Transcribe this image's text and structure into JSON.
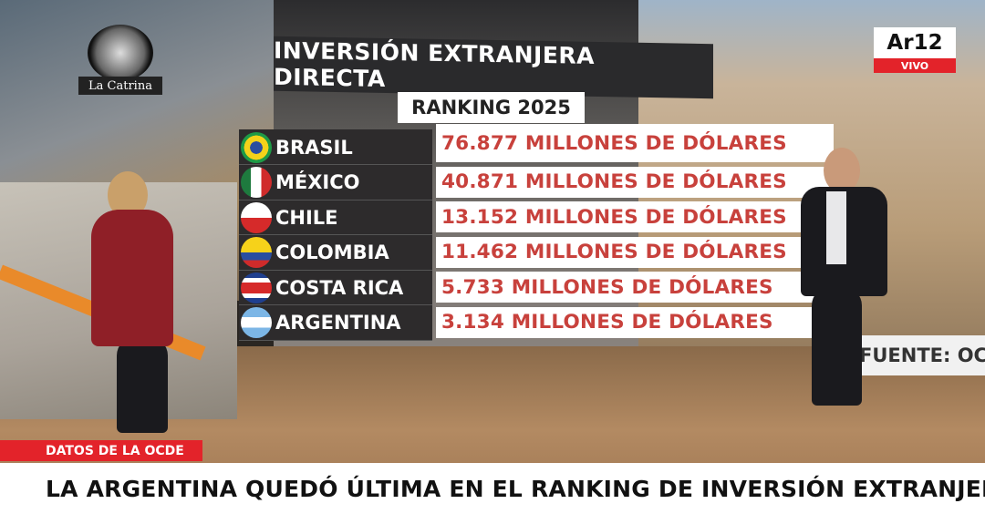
{
  "channel_logo": {
    "name": "Ar12",
    "live": "VIVO"
  },
  "program_logo": "La Catrina",
  "board": {
    "title": "INVERSIÓN EXTRANJERA DIRECTA",
    "subtitle": "RANKING 2025",
    "rows": [
      {
        "country": "BRASIL",
        "amount": "76.877 MILLONES DE DÓLARES"
      },
      {
        "country": "MÉXICO",
        "amount": "40.871 MILLONES DE DÓLARES"
      },
      {
        "country": "CHILE",
        "amount": "13.152 MILLONES DE DÓLARES"
      },
      {
        "country": "COLOMBIA",
        "amount": "11.462 MILLONES DE DÓLARES"
      },
      {
        "country": "COSTA RICA",
        "amount": "5.733 MILLONES DE DÓLARES"
      },
      {
        "country": "ARGENTINA",
        "amount": "3.134 MILLONES DE DÓLARES"
      }
    ]
  },
  "source": "FUENTE: OC",
  "lower_third": {
    "tag": "DATOS DE LA OCDE",
    "headline": "LA ARGENTINA QUEDÓ ÚLTIMA EN EL RANKING DE INVERSIÓN EXTRANJERA"
  }
}
